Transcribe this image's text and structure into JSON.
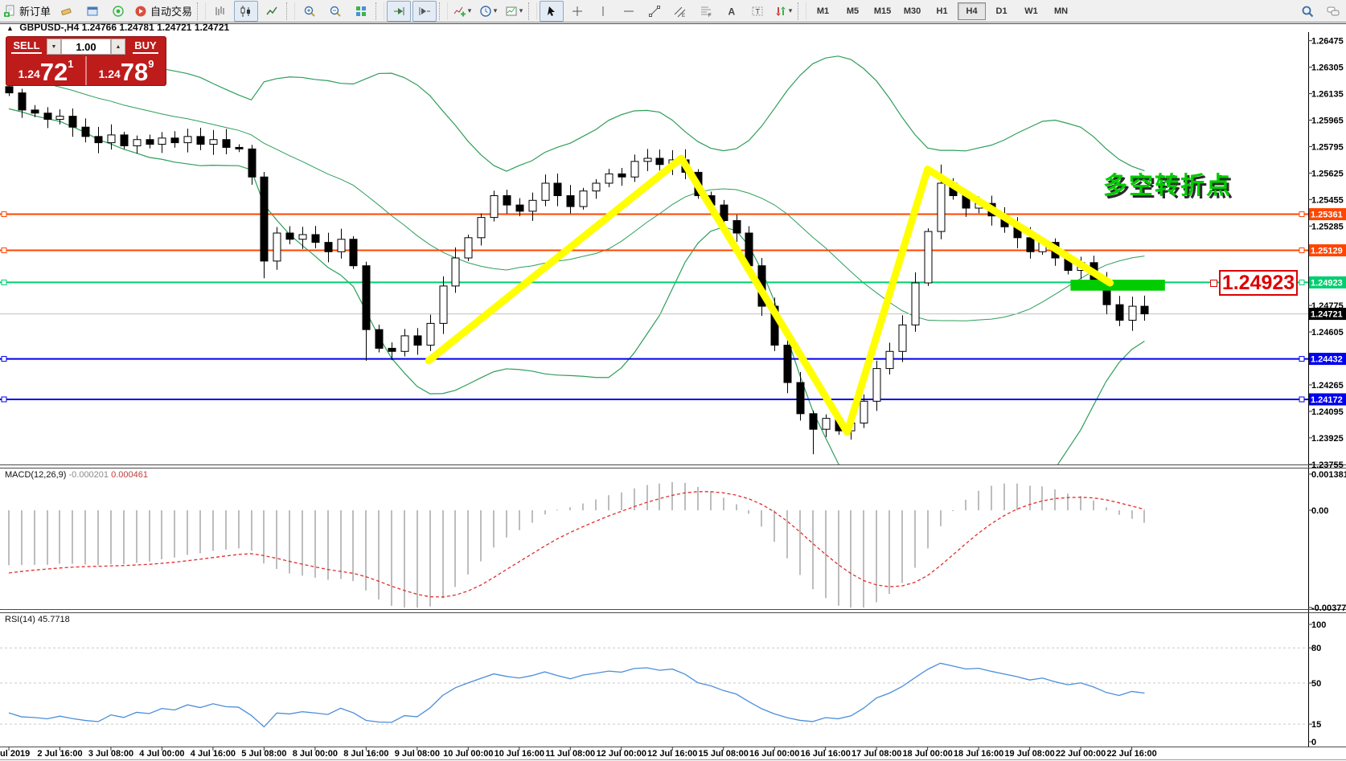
{
  "toolbar": {
    "buttons": [
      {
        "name": "new-order",
        "label": "新订单"
      },
      {
        "name": "eraser"
      },
      {
        "name": "window"
      },
      {
        "name": "radar"
      },
      {
        "name": "autotrade",
        "label": "自动交易"
      },
      {
        "sep": true
      },
      {
        "name": "bars"
      },
      {
        "name": "candles",
        "active": true
      },
      {
        "name": "linechart"
      },
      {
        "sep": true
      },
      {
        "name": "zoom-in"
      },
      {
        "name": "zoom-out"
      },
      {
        "name": "tile"
      },
      {
        "sep": true
      },
      {
        "name": "autoscroll",
        "active": true
      },
      {
        "name": "shift",
        "active": true
      },
      {
        "sep": true
      },
      {
        "name": "indicator-add",
        "caret": true
      },
      {
        "name": "periods",
        "caret": true
      },
      {
        "name": "template",
        "caret": true
      },
      {
        "sep": true
      },
      {
        "name": "cursor",
        "active": true
      },
      {
        "name": "crosshair"
      },
      {
        "name": "vline"
      },
      {
        "name": "hline"
      },
      {
        "name": "trendline"
      },
      {
        "name": "channel"
      },
      {
        "name": "fibo"
      },
      {
        "name": "text-a"
      },
      {
        "name": "text-label"
      },
      {
        "name": "shapes",
        "caret": true
      },
      {
        "sep": true
      }
    ],
    "timeframes": [
      "M1",
      "M5",
      "M15",
      "M30",
      "H1",
      "H4",
      "D1",
      "W1",
      "MN"
    ],
    "active_timeframe": "H4",
    "right_buttons": [
      "search",
      "chat"
    ]
  },
  "chart": {
    "title_symbol": "GBPUSD-,H4",
    "ohlc": {
      "o": "1.24766",
      "h": "1.24781",
      "l": "1.24721",
      "c": "1.24721"
    },
    "annotation": "多空转折点",
    "callout": "1.24923"
  },
  "trade": {
    "sell_label": "SELL",
    "buy_label": "BUY",
    "volume": "1.00",
    "sell": {
      "stem": "1.24",
      "big": "72",
      "sup": "1"
    },
    "buy": {
      "stem": "1.24",
      "big": "78",
      "sup": "9"
    }
  },
  "macd": {
    "name": "MACD(12,26,9)",
    "value_main": "-0.000201",
    "value_signal": "0.000461"
  },
  "rsi": {
    "name": "RSI(14)",
    "value": "45.7718"
  },
  "colors": {
    "orange_line": "#ff4500",
    "blue_line": "#0000ee",
    "green_line": "#00ce6f",
    "green_rect": "#00cc00",
    "yellow": "#ffff00",
    "annotation_green": "#00cc00",
    "callout_red": "#dd0000",
    "bollinger": "#2e9e5b",
    "macd_hist": "#bdbdbd",
    "macd_signal": "#df2f2f",
    "rsi_line": "#4c8eda",
    "panel_red": "#be1b1b",
    "current_price_line": "#c0c0c0",
    "candle_up": "#ffffff",
    "candle_down": "#000000"
  },
  "chart_data": {
    "type": "candlestick",
    "symbol": "GBPUSD",
    "period": "H4",
    "y_axis_ticks": [
      1.26475,
      1.26305,
      1.26135,
      1.25965,
      1.25795,
      1.25625,
      1.25455,
      1.25285,
      1.24775,
      1.24605,
      1.24265,
      1.24095,
      1.23925,
      1.23755
    ],
    "price_lines": [
      {
        "price": 1.25361,
        "color": "#ff4500",
        "kind": "resistance"
      },
      {
        "price": 1.25129,
        "color": "#ff4500",
        "kind": "resistance"
      },
      {
        "price": 1.24923,
        "color": "#00ce6f",
        "kind": "pivot"
      },
      {
        "price": 1.24432,
        "color": "#0000ee",
        "kind": "support"
      },
      {
        "price": 1.24172,
        "color": "#0000ee",
        "kind": "support"
      }
    ],
    "current_price": 1.24721,
    "x_labels": [
      "2 Jul 2019",
      "2 Jul 16:00",
      "3 Jul 08:00",
      "4 Jul 00:00",
      "4 Jul 16:00",
      "5 Jul 08:00",
      "8 Jul 00:00",
      "8 Jul 16:00",
      "9 Jul 08:00",
      "10 Jul 00:00",
      "10 Jul 16:00",
      "11 Jul 08:00",
      "12 Jul 00:00",
      "12 Jul 16:00",
      "15 Jul 08:00",
      "16 Jul 00:00",
      "16 Jul 16:00",
      "17 Jul 08:00",
      "18 Jul 00:00",
      "18 Jul 16:00",
      "19 Jul 08:00",
      "22 Jul 00:00",
      "22 Jul 16:00"
    ],
    "bars_per_label": 4,
    "prehistory": [
      1.2755,
      1.2748,
      1.2752,
      1.274,
      1.2733,
      1.2737,
      1.2725,
      1.2718,
      1.2722,
      1.271,
      1.2703,
      1.2707,
      1.2695,
      1.2688,
      1.268,
      1.2672,
      1.2658,
      1.265,
      1.2644,
      1.2648,
      1.264,
      1.2634,
      1.2638,
      1.263,
      1.2626,
      1.263,
      1.2622,
      1.2619,
      1.2623,
      1.2616,
      1.2613,
      1.2617,
      1.2621,
      1.2618,
      1.2615,
      1.2618
    ],
    "closes": [
      1.2614,
      1.2603,
      1.2601,
      1.2597,
      1.2599,
      1.2592,
      1.2586,
      1.2582,
      1.2587,
      1.258,
      1.2584,
      1.2581,
      1.2585,
      1.2582,
      1.2586,
      1.2581,
      1.2584,
      1.2579,
      1.2578,
      1.256,
      1.2506,
      1.2524,
      1.252,
      1.2523,
      1.2518,
      1.2512,
      1.252,
      1.2503,
      1.2462,
      1.245,
      1.2448,
      1.2458,
      1.2452,
      1.2466,
      1.249,
      1.2508,
      1.2521,
      1.2534,
      1.2548,
      1.2542,
      1.2538,
      1.2545,
      1.2556,
      1.2548,
      1.2541,
      1.2551,
      1.2556,
      1.2562,
      1.256,
      1.257,
      1.2572,
      1.2568,
      1.2571,
      1.2563,
      1.2548,
      1.2542,
      1.2532,
      1.2524,
      1.2503,
      1.2477,
      1.2452,
      1.2428,
      1.2408,
      1.2398,
      1.2405,
      1.2397,
      1.2402,
      1.2416,
      1.2437,
      1.2448,
      1.2465,
      1.2492,
      1.2525,
      1.2556,
      1.2548,
      1.254,
      1.2543,
      1.2535,
      1.2528,
      1.2521,
      1.2512,
      1.2518,
      1.2508,
      1.25,
      1.2505,
      1.2494,
      1.2478,
      1.2468,
      1.2477,
      1.24721
    ],
    "wick_overrides": {
      "0": {
        "high": 1.2627
      },
      "20": {
        "low": 1.2495
      },
      "28": {
        "low": 1.2442
      },
      "50": {
        "high": 1.2578
      },
      "63": {
        "low": 1.2382
      },
      "73": {
        "high": 1.2568
      }
    },
    "zigzag": [
      [
        32.9,
        1.2442
      ],
      [
        52.7,
        1.2572
      ],
      [
        65.7,
        1.2396
      ],
      [
        72.0,
        1.2565
      ],
      [
        86.3,
        1.2492
      ]
    ],
    "highlight_rect": {
      "bar_start": 83.2,
      "bar_end": 90.6,
      "price_top": 1.2494,
      "price_bottom": 1.2487
    },
    "indicators": {
      "bollinger": {
        "period": 20,
        "deviation": 2
      },
      "macd": {
        "fast": 12,
        "slow": 26,
        "signal": 9
      },
      "rsi": {
        "period": 14
      }
    },
    "macd_axis": [
      [
        "0.001381",
        0.001381
      ],
      [
        "0.00",
        0
      ],
      [
        "-0.003771",
        -0.003771
      ]
    ],
    "rsi_axis": [
      [
        "100",
        100
      ],
      [
        "80",
        80
      ],
      [
        "50",
        50
      ],
      [
        "15",
        15
      ],
      [
        "0",
        0
      ]
    ],
    "rsi_levels": [
      80,
      50,
      15
    ]
  }
}
